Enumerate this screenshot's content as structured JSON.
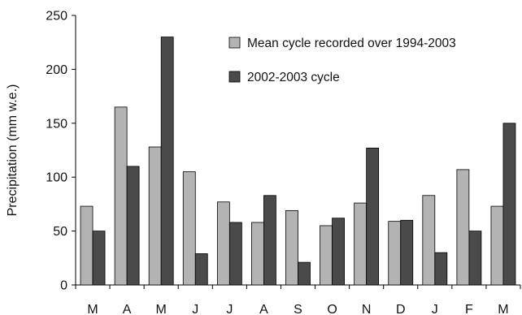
{
  "chart_data": {
    "type": "bar",
    "title": "",
    "xlabel": "",
    "ylabel": "Precipitation (mm w.e.)",
    "ylim": [
      0,
      250
    ],
    "yticks": [
      0,
      50,
      100,
      150,
      200,
      250
    ],
    "grid": false,
    "legend_position": "top-right",
    "categories": [
      "M",
      "A",
      "M",
      "J",
      "J",
      "A",
      "S",
      "O",
      "N",
      "D",
      "J",
      "F",
      "M"
    ],
    "series": [
      {
        "name": "Mean cycle recorded over 1994-2003",
        "color": "#b3b3b3",
        "values": [
          73,
          165,
          128,
          105,
          77,
          58,
          69,
          55,
          76,
          59,
          83,
          107,
          73
        ]
      },
      {
        "name": "2002-2003 cycle",
        "color": "#4a4a4a",
        "values": [
          50,
          110,
          230,
          29,
          58,
          83,
          21,
          62,
          127,
          60,
          30,
          50,
          150
        ]
      }
    ]
  }
}
